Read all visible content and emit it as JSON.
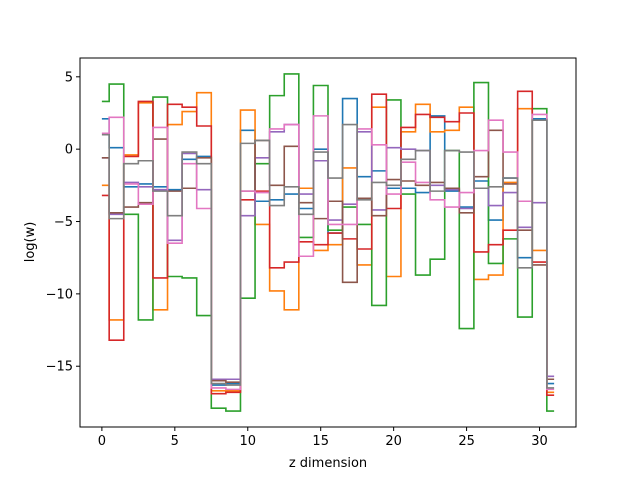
{
  "chart_data": {
    "type": "line",
    "step": "mid",
    "title": "",
    "xlabel": "z dimension",
    "ylabel": "log(w)",
    "xlim": [
      -1.5,
      32.5
    ],
    "ylim": [
      -19.2,
      6.3
    ],
    "xticks": [
      0,
      5,
      10,
      15,
      20,
      25,
      30
    ],
    "yticks": [
      -15,
      -10,
      -5,
      0,
      5
    ],
    "grid": false,
    "legend": "none",
    "x": [
      0,
      1,
      2,
      3,
      4,
      5,
      6,
      7,
      8,
      9,
      10,
      11,
      12,
      13,
      14,
      15,
      16,
      17,
      18,
      19,
      20,
      21,
      22,
      23,
      24,
      25,
      26,
      27,
      28,
      29,
      30,
      31
    ],
    "series": [
      {
        "color": "#1f77b4",
        "values": [
          2.1,
          0.1,
          -2.6,
          -2.4,
          -2.6,
          -2.8,
          -0.7,
          -0.5,
          -16.3,
          -16.2,
          1.3,
          -3.6,
          -3.5,
          -3.1,
          -4.1,
          0.0,
          -5.8,
          3.5,
          -1.9,
          -1.5,
          -2.7,
          -2.7,
          -3.0,
          2.3,
          -2.9,
          -4.0,
          -2.2,
          -4.9,
          -2.0,
          -7.5,
          2.1,
          -16.2
        ]
      },
      {
        "color": "#ff7f0e",
        "values": [
          -2.5,
          -11.8,
          -0.4,
          3.2,
          -11.1,
          1.7,
          2.6,
          3.9,
          -16.7,
          -16.7,
          2.7,
          -5.2,
          -9.8,
          -11.1,
          -2.7,
          -7.0,
          -6.6,
          -1.3,
          -8.0,
          2.9,
          -8.8,
          1.2,
          3.1,
          1.2,
          1.3,
          2.9,
          -9.0,
          -8.7,
          -2.3,
          2.8,
          -7.0,
          -16.8
        ]
      },
      {
        "color": "#2ca02c",
        "values": [
          3.3,
          4.5,
          -4.5,
          -11.8,
          3.6,
          -8.8,
          -8.9,
          -11.5,
          -17.9,
          -18.1,
          -10.3,
          -1.0,
          3.7,
          5.2,
          -6.1,
          4.4,
          -5.6,
          -4.0,
          -5.2,
          -10.8,
          3.4,
          -3.1,
          -8.7,
          -7.6,
          -0.1,
          -12.4,
          4.6,
          -7.9,
          -6.2,
          -11.6,
          2.8,
          -18.1
        ]
      },
      {
        "color": "#d62728",
        "values": [
          -3.2,
          -13.2,
          -0.5,
          3.3,
          -8.9,
          3.1,
          2.9,
          1.6,
          -16.9,
          -16.8,
          -3.5,
          -2.9,
          -8.2,
          -7.8,
          -6.4,
          -6.6,
          -5.8,
          -6.2,
          -6.9,
          3.8,
          -4.1,
          1.5,
          2.4,
          2.2,
          1.9,
          2.5,
          -7.1,
          -6.6,
          -5.6,
          4.0,
          -7.8,
          -17.0
        ]
      },
      {
        "color": "#9467bd",
        "values": [
          -0.6,
          -4.5,
          -2.3,
          -2.6,
          -2.8,
          -6.3,
          -0.3,
          -2.8,
          -15.9,
          -15.9,
          -4.6,
          -0.6,
          1.2,
          1.7,
          -3.1,
          -0.8,
          -4.9,
          -3.8,
          1.2,
          -4.2,
          0.1,
          0.0,
          -0.1,
          -2.5,
          -2.8,
          -4.1,
          -2.7,
          -3.9,
          -3.0,
          -5.4,
          -3.7,
          -15.7
        ]
      },
      {
        "color": "#8c564b",
        "values": [
          -0.6,
          -4.4,
          -4.0,
          -3.7,
          0.7,
          -2.9,
          -2.7,
          -0.6,
          -16.0,
          -16.1,
          -2.9,
          0.6,
          -2.5,
          0.2,
          -3.7,
          -4.8,
          -3.6,
          -9.2,
          -3.4,
          -4.6,
          -2.1,
          -2.2,
          -2.5,
          -2.3,
          -2.7,
          -4.4,
          -1.9,
          1.3,
          -2.4,
          -5.6,
          -8.0,
          -15.9
        ]
      },
      {
        "color": "#e377c2",
        "values": [
          1.1,
          2.2,
          -2.4,
          -3.8,
          1.5,
          -6.5,
          -1.0,
          -4.1,
          -16.5,
          -16.6,
          -2.9,
          -3.0,
          1.4,
          1.7,
          -7.4,
          2.3,
          -5.2,
          -5.2,
          1.4,
          0.3,
          -3.1,
          -0.9,
          -2.3,
          -3.5,
          -4.0,
          -3.0,
          -0.1,
          2.0,
          -0.2,
          -3.6,
          2.4,
          -16.6
        ]
      },
      {
        "color": "#7f7f7f",
        "values": [
          1.0,
          -4.8,
          -1.0,
          -0.8,
          -2.9,
          -4.6,
          -0.2,
          -1.0,
          -16.2,
          -16.3,
          0.4,
          0.6,
          -3.9,
          -2.6,
          -4.5,
          -0.2,
          -2.0,
          1.7,
          -3.5,
          -2.3,
          -2.5,
          -0.7,
          -0.1,
          -2.9,
          -0.1,
          -0.2,
          -2.7,
          -2.6,
          -2.0,
          -8.2,
          2.0,
          -16.5
        ]
      }
    ]
  }
}
